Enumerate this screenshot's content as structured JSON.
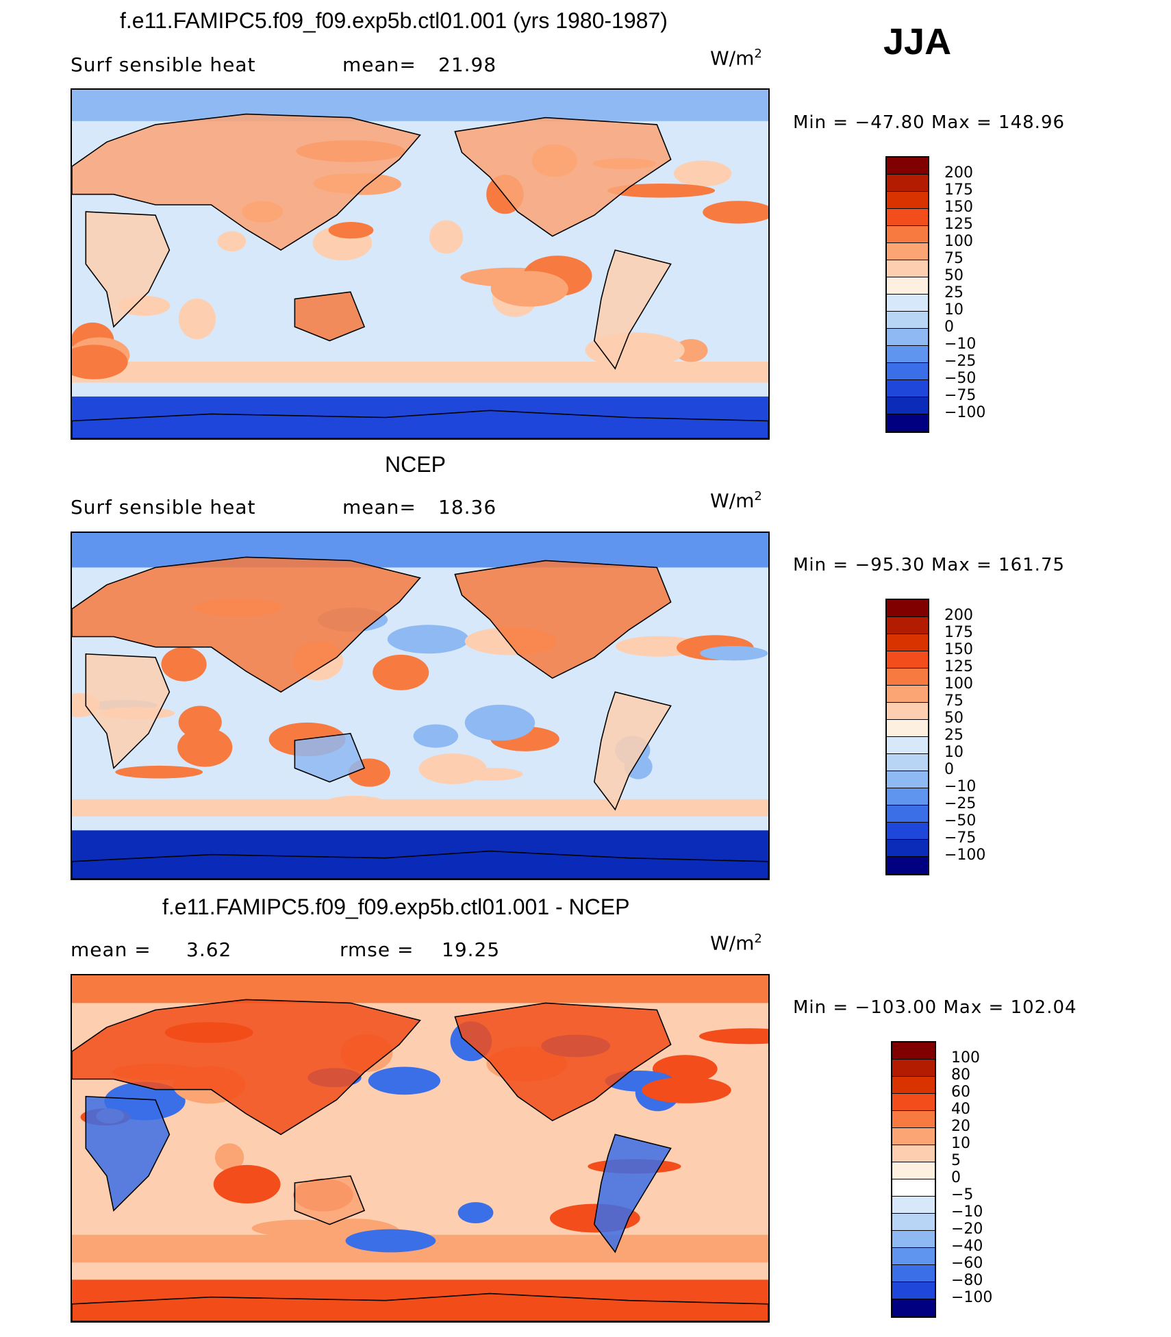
{
  "season": "JJA",
  "units_base": "W/m",
  "units_exp": "2",
  "chart_data": [
    {
      "type": "heatmap",
      "title": "f.e11.FAMIPC5.f09_f09.exp5b.ctl01.001 (yrs 1980-1987)",
      "variable": "Surf  sensible  heat",
      "stat_label": "mean=",
      "stat_value": "21.98",
      "extra_label": "",
      "extra_value": "",
      "min_label": "Min",
      "min": "−47.80",
      "max_label": "Max",
      "max": "148.96",
      "levels": [
        "200",
        "175",
        "150",
        "125",
        "100",
        "75",
        "50",
        "25",
        "10",
        "0",
        "−10",
        "−25",
        "−50",
        "−75",
        "−100"
      ],
      "colors": [
        "#800000",
        "#b31c00",
        "#d93300",
        "#f24d1a",
        "#f77a40",
        "#fba575",
        "#fdcfb0",
        "#fdf0e0",
        "#d6e8fa",
        "#b8d5f5",
        "#8fb9f2",
        "#5f95ee",
        "#3b6fe8",
        "#1f47d9",
        "#0a2cb8",
        "#000080"
      ]
    },
    {
      "type": "heatmap",
      "title": "NCEP",
      "variable": "Surf  sensible  heat",
      "stat_label": "mean=",
      "stat_value": "18.36",
      "extra_label": "",
      "extra_value": "",
      "min_label": "Min",
      "min": "−95.30",
      "max_label": "Max",
      "max": "161.75",
      "levels": [
        "200",
        "175",
        "150",
        "125",
        "100",
        "75",
        "50",
        "25",
        "10",
        "0",
        "−10",
        "−25",
        "−50",
        "−75",
        "−100"
      ],
      "colors": [
        "#800000",
        "#b31c00",
        "#d93300",
        "#f24d1a",
        "#f77a40",
        "#fba575",
        "#fdcfb0",
        "#fdf0e0",
        "#d6e8fa",
        "#b8d5f5",
        "#8fb9f2",
        "#5f95ee",
        "#3b6fe8",
        "#1f47d9",
        "#0a2cb8",
        "#000080"
      ]
    },
    {
      "type": "heatmap",
      "title": "f.e11.FAMIPC5.f09_f09.exp5b.ctl01.001 - NCEP",
      "variable": "",
      "stat_label": "mean  =",
      "stat_value": "3.62",
      "extra_label": "rmse  =",
      "extra_value": "19.25",
      "min_label": "Min",
      "min": "−103.00",
      "max_label": "Max",
      "max": "102.04",
      "levels": [
        "100",
        "80",
        "60",
        "40",
        "20",
        "10",
        "5",
        "0",
        "−5",
        "−10",
        "−20",
        "−40",
        "−60",
        "−80",
        "−100"
      ],
      "colors": [
        "#800000",
        "#b31c00",
        "#d93300",
        "#f24d1a",
        "#f77a40",
        "#fba575",
        "#fdcfb0",
        "#fdf0e0",
        "#ffffff",
        "#d6e8fa",
        "#b8d5f5",
        "#8fb9f2",
        "#5f95ee",
        "#3b6fe8",
        "#1f47d9",
        "#000080"
      ]
    }
  ]
}
